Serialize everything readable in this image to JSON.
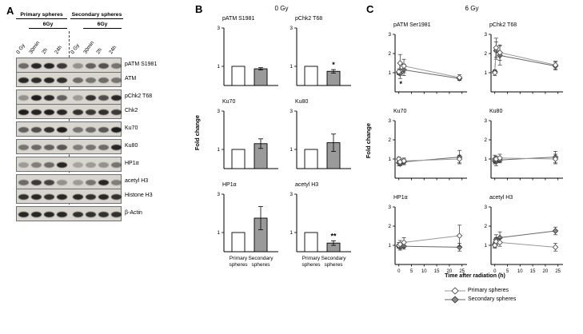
{
  "panelA": {
    "label": "A",
    "group_headers": [
      "Primary spheres",
      "Secondary spheres"
    ],
    "dose_header": "6Gy",
    "lane_labels": [
      "0 Gy",
      "30min",
      "2h",
      "24h",
      "0 Gy",
      "30min",
      "2h",
      "24h"
    ],
    "blot_groups": [
      {
        "rows": [
          {
            "label": "pATM S1981",
            "bands": [
              0.55,
              0.9,
              0.92,
              0.8,
              0.35,
              0.6,
              0.68,
              0.5
            ]
          },
          {
            "label": "ATM",
            "bands": [
              0.9,
              0.88,
              0.9,
              0.86,
              0.55,
              0.5,
              0.55,
              0.5
            ]
          }
        ]
      },
      {
        "rows": [
          {
            "label": "pChk2 T68",
            "bands": [
              0.35,
              0.95,
              0.9,
              0.6,
              0.3,
              0.85,
              0.7,
              0.9
            ]
          },
          {
            "label": "Chk2",
            "bands": [
              0.95,
              0.92,
              0.95,
              0.9,
              0.85,
              0.82,
              0.85,
              0.8
            ]
          }
        ]
      },
      {
        "rows": [
          {
            "label": "Ku70",
            "bands": [
              0.6,
              0.7,
              0.85,
              0.95,
              0.5,
              0.55,
              0.65,
              0.95
            ]
          }
        ]
      },
      {
        "rows": [
          {
            "label": "Ku80",
            "bands": [
              0.5,
              0.55,
              0.6,
              0.65,
              0.45,
              0.5,
              0.55,
              0.9
            ]
          }
        ]
      },
      {
        "rows": [
          {
            "label": "HP1α",
            "bands": [
              0.3,
              0.45,
              0.55,
              0.9,
              0.25,
              0.3,
              0.35,
              0.5
            ]
          }
        ]
      },
      {
        "rows": [
          {
            "label": "acetyl H3",
            "bands": [
              0.55,
              0.8,
              0.75,
              0.35,
              0.3,
              0.5,
              0.9,
              0.45
            ]
          },
          {
            "label": "Histone H3",
            "bands": [
              0.85,
              0.9,
              0.85,
              0.9,
              0.9,
              0.85,
              0.9,
              0.85
            ]
          }
        ]
      },
      {
        "rows": [
          {
            "label": "β-Actin",
            "bands": [
              0.9,
              0.9,
              0.9,
              0.9,
              0.85,
              0.85,
              0.85,
              0.85
            ]
          }
        ]
      }
    ]
  },
  "chart_data": [
    {
      "panel_label": "B",
      "type": "bar",
      "title": "0 Gy",
      "ylabel": "Fold change",
      "ylim": [
        0,
        3
      ],
      "yticks": [
        1,
        3
      ],
      "categories": [
        "Primary spheres",
        "Secondary spheres"
      ],
      "bar_colors": {
        "primary": "#ffffff",
        "secondary": "#9a9a9a"
      },
      "subplots": [
        {
          "title": "pATM S1981",
          "values": [
            1.0,
            0.87
          ],
          "errors": [
            0,
            0.06
          ],
          "sig": ""
        },
        {
          "title": "pChk2 T68",
          "values": [
            1.0,
            0.74
          ],
          "errors": [
            0,
            0.09
          ],
          "sig": "*"
        },
        {
          "title": "Ku70",
          "values": [
            1.0,
            1.3
          ],
          "errors": [
            0,
            0.25
          ],
          "sig": ""
        },
        {
          "title": "Ku80",
          "values": [
            1.0,
            1.35
          ],
          "errors": [
            0,
            0.45
          ],
          "sig": ""
        },
        {
          "title": "HP1α",
          "values": [
            1.0,
            1.75
          ],
          "errors": [
            0,
            0.6
          ],
          "sig": ""
        },
        {
          "title": "acetyl H3",
          "values": [
            1.0,
            0.45
          ],
          "errors": [
            0,
            0.12
          ],
          "sig": "**"
        }
      ]
    },
    {
      "panel_label": "C",
      "type": "line",
      "title": "6 Gy",
      "ylabel": "Fold change",
      "xlabel": "Time after radiation (h)",
      "x": [
        0,
        0.5,
        2,
        24
      ],
      "xticks": [
        0,
        5,
        10,
        15,
        20,
        25
      ],
      "ylim": [
        0,
        3
      ],
      "yticks": [
        1,
        2,
        3
      ],
      "series_names": [
        "Primary spheres",
        "Secondary spheres"
      ],
      "subplots": [
        {
          "title": "pATM Ser1981",
          "primary": {
            "y": [
              1.05,
              1.5,
              1.35,
              0.75
            ],
            "err": [
              0.15,
              0.45,
              0.35,
              0.15
            ]
          },
          "secondary": {
            "y": [
              1.0,
              0.95,
              1.15,
              0.7
            ],
            "err": [
              0.1,
              0.25,
              0.3,
              0.1
            ]
          },
          "annotation": {
            "text": "*",
            "x": 0.8,
            "y": 0.3
          }
        },
        {
          "title": "pChk2 T68",
          "primary": {
            "y": [
              1.0,
              2.3,
              2.05,
              1.4
            ],
            "err": [
              0.15,
              0.5,
              0.4,
              0.2
            ]
          },
          "secondary": {
            "y": [
              1.05,
              2.15,
              1.9,
              1.35
            ],
            "err": [
              0.1,
              0.45,
              0.5,
              0.2
            ]
          },
          "annotation": null
        },
        {
          "title": "Ku70",
          "primary": {
            "y": [
              1.0,
              0.85,
              0.9,
              1.0
            ],
            "err": [
              0.1,
              0.15,
              0.15,
              0.2
            ]
          },
          "secondary": {
            "y": [
              0.8,
              0.75,
              0.85,
              1.1
            ],
            "err": [
              0.15,
              0.1,
              0.15,
              0.35
            ]
          },
          "annotation": null
        },
        {
          "title": "Ku80",
          "primary": {
            "y": [
              1.0,
              1.0,
              1.05,
              1.0
            ],
            "err": [
              0.2,
              0.15,
              0.2,
              0.25
            ]
          },
          "secondary": {
            "y": [
              0.9,
              0.85,
              0.95,
              1.1
            ],
            "err": [
              0.15,
              0.2,
              0.15,
              0.3
            ]
          },
          "annotation": null
        },
        {
          "title": "HP1α",
          "primary": {
            "y": [
              1.0,
              1.05,
              1.15,
              1.5
            ],
            "err": [
              0.15,
              0.2,
              0.25,
              0.55
            ]
          },
          "secondary": {
            "y": [
              0.95,
              0.9,
              0.95,
              0.9
            ],
            "err": [
              0.1,
              0.15,
              0.15,
              0.2
            ]
          },
          "annotation": null
        },
        {
          "title": "acetyl H3",
          "primary": {
            "y": [
              1.0,
              1.2,
              1.15,
              0.9
            ],
            "err": [
              0.15,
              0.2,
              0.2,
              0.2
            ]
          },
          "secondary": {
            "y": [
              1.05,
              1.3,
              1.4,
              1.75
            ],
            "err": [
              0.15,
              0.25,
              0.3,
              0.2
            ]
          },
          "annotation": null
        }
      ],
      "legend": [
        {
          "label": "Primary spheres",
          "marker": "open-diamond"
        },
        {
          "label": "Secondary spheres",
          "marker": "filled-diamond"
        }
      ]
    }
  ]
}
